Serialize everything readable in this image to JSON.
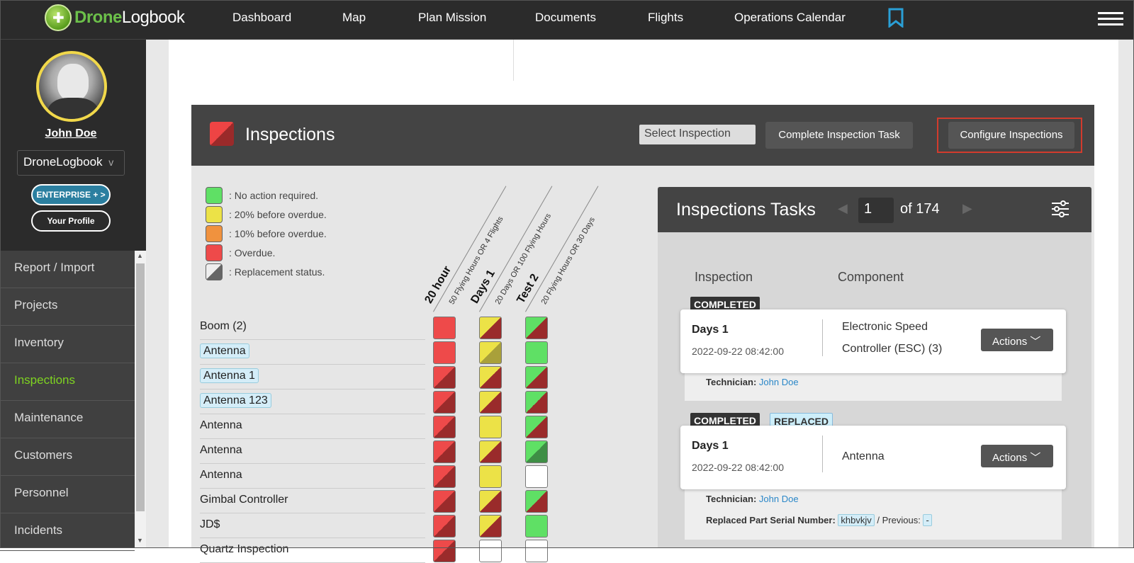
{
  "app": {
    "logo_prefix": "Drone",
    "logo_suffix": "Logbook"
  },
  "nav": {
    "items": [
      "Dashboard",
      "Map",
      "Plan Mission",
      "Documents",
      "Flights",
      "Operations Calendar"
    ],
    "bookmark_icon": "bookmark-icon",
    "menu_icon": "hamburger-icon"
  },
  "profile": {
    "name": "John Doe",
    "org": "DroneLogbook",
    "org_chevron": "v",
    "enterprise_label": "ENTERPRISE + >",
    "profile_label": "Your Profile"
  },
  "sidebar": {
    "items": [
      "Report / Import",
      "Projects",
      "Inventory",
      "Inspections",
      "Maintenance",
      "Customers",
      "Personnel",
      "Incidents"
    ],
    "active": "Inspections"
  },
  "inspections": {
    "title": "Inspections",
    "select_placeholder": "Select Inspection",
    "complete_btn": "Complete Inspection Task",
    "configure_btn": "Configure Inspections",
    "legend": [
      {
        "label": ": No action required.",
        "color": "#5fe065"
      },
      {
        "label": ": 20% before overdue.",
        "color": "#ece247"
      },
      {
        "label": ": 10% before overdue.",
        "color": "#f0923e"
      },
      {
        "label": ": Overdue.",
        "color": "#ee4a4a"
      },
      {
        "label": ": Replacement status.",
        "color": "#777777"
      }
    ],
    "columns": [
      {
        "name": "20 hour",
        "desc": "50 Flying Hours OR 4 Flights"
      },
      {
        "name": "Days 1",
        "desc": "20 Days OR 100 Flying Hours"
      },
      {
        "name": "Test 2",
        "desc": "20 Flying Hours OR 30 Days"
      }
    ],
    "rows": [
      {
        "label": "Boom (2)",
        "tagged": false
      },
      {
        "label": "Antenna",
        "tagged": true
      },
      {
        "label": "Antenna 1",
        "tagged": true
      },
      {
        "label": "Antenna 123",
        "tagged": true
      },
      {
        "label": "Antenna",
        "tagged": false
      },
      {
        "label": "Antenna",
        "tagged": false
      },
      {
        "label": "Antenna",
        "tagged": false
      },
      {
        "label": "Gimbal Controller",
        "tagged": false
      },
      {
        "label": "JD$",
        "tagged": false
      },
      {
        "label": "Quartz Inspection",
        "tagged": false
      }
    ]
  },
  "tasks": {
    "title": "Inspections Tasks",
    "page": "1",
    "of_label": "of 174",
    "col_inspection": "Inspection",
    "col_component": "Component",
    "items": [
      {
        "badges": [
          "COMPLETED"
        ],
        "inspection": "Days 1",
        "datetime": "2022-09-22 08:42:00",
        "component": "Electronic Speed Controller (ESC) (3)",
        "actions": "Actions",
        "technician_label": "Technician:",
        "technician": "John Doe"
      },
      {
        "badges": [
          "COMPLETED",
          "REPLACED"
        ],
        "inspection": "Days 1",
        "datetime": "2022-09-22 08:42:00",
        "component": "Antenna",
        "actions": "Actions",
        "technician_label": "Technician:",
        "technician": "John Doe",
        "serial_label": "Replaced Part Serial Number:",
        "serial": "khbvkjv",
        "previous_label": "/ Previous:",
        "previous": "-"
      }
    ]
  }
}
